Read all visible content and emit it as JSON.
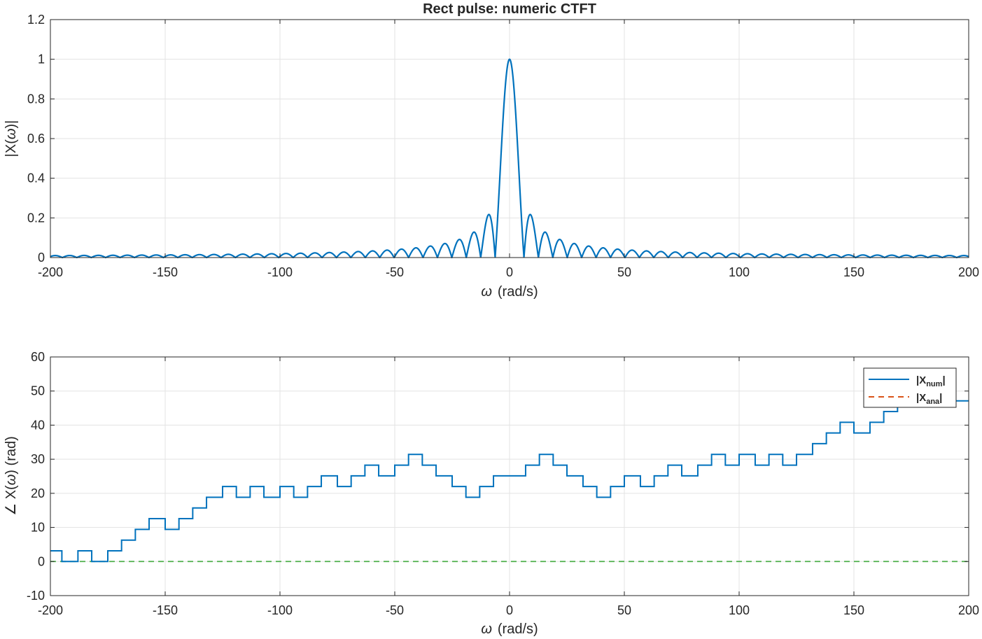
{
  "chart_data": [
    {
      "type": "line",
      "title": "Rect pulse: numeric CTFT",
      "xlabel": "(rad/s)",
      "xlabel_symbol": "ω",
      "ylabel_pre": "|X(",
      "ylabel_symbol": "ω",
      "ylabel_post": ")|",
      "xlim": [
        -200,
        200
      ],
      "ylim": [
        0,
        1.2
      ],
      "xticks": [
        "-200",
        "-150",
        "-100",
        "-50",
        "0",
        "50",
        "100",
        "150",
        "200"
      ],
      "yticks": [
        "0",
        "0.2",
        "0.4",
        "0.6",
        "0.8",
        "1",
        "1.2"
      ],
      "grid": true,
      "series": [
        {
          "name": "",
          "color": "#0072BD",
          "style": "solid",
          "function": "abs(sinc(omega/(2*pi)))",
          "x_range": [
            -200,
            200
          ],
          "peak": [
            0,
            1.0
          ],
          "first_nulls": [
            -6.28,
            6.28
          ],
          "first_sidelobe": [
            8.99,
            0.217
          ]
        }
      ]
    },
    {
      "type": "line",
      "title": "",
      "xlabel": "(rad/s)",
      "xlabel_symbol": "ω",
      "ylabel_pre": "∠ X(",
      "ylabel_symbol": "ω",
      "ylabel_post": ")  (rad)",
      "xlim": [
        -200,
        200
      ],
      "ylim": [
        -10,
        60
      ],
      "xticks": [
        "-200",
        "-150",
        "-100",
        "-50",
        "0",
        "50",
        "100",
        "150",
        "200"
      ],
      "yticks": [
        "-10",
        "0",
        "10",
        "20",
        "30",
        "40",
        "50",
        "60"
      ],
      "grid": true,
      "legend_position": "top-right",
      "series": [
        {
          "name": "|X_num|",
          "legend_main": "|X",
          "legend_sub": "num",
          "legend_end": "|",
          "color": "#0072BD",
          "style": "solid",
          "step_edges": [
            -200,
            -195,
            -188,
            -182,
            -175,
            -169,
            -163,
            -157,
            -150,
            -144,
            -138,
            -132,
            -125,
            -119,
            -113,
            -107,
            -100,
            -94,
            -88,
            -82,
            -75,
            -69,
            -63,
            -57,
            -50,
            -44,
            -38,
            -32,
            -25,
            -19,
            -13,
            -7,
            0,
            7,
            13,
            19,
            25,
            32,
            38,
            44,
            50,
            57,
            63,
            69,
            75,
            82,
            88,
            94,
            100,
            107,
            113,
            119,
            125,
            132,
            138,
            144,
            150,
            157,
            163,
            169,
            175,
            200
          ],
          "step_values": [
            3.14,
            0,
            3.14,
            0,
            3.14,
            6.28,
            9.42,
            12.57,
            9.42,
            12.57,
            15.71,
            18.85,
            21.99,
            18.85,
            21.99,
            18.85,
            21.99,
            18.85,
            21.99,
            25.13,
            21.99,
            25.13,
            28.27,
            25.13,
            28.27,
            31.42,
            28.27,
            25.13,
            21.99,
            18.85,
            21.99,
            25.13,
            25.13,
            28.27,
            31.42,
            28.27,
            25.13,
            21.99,
            18.85,
            21.99,
            25.13,
            21.99,
            25.13,
            28.27,
            25.13,
            28.27,
            31.42,
            28.27,
            31.42,
            28.27,
            31.42,
            28.27,
            31.42,
            34.56,
            37.7,
            40.84,
            37.7,
            40.84,
            43.98,
            47.12,
            47.12
          ]
        },
        {
          "name": "|X_ana|",
          "legend_main": "|X",
          "legend_sub": "ana",
          "legend_end": "|",
          "color": "#D95319",
          "style": "dashed",
          "values_constant": 0
        },
        {
          "name": "",
          "color": "#4DAF4A",
          "style": "dashed",
          "values_constant": 0
        }
      ]
    }
  ]
}
